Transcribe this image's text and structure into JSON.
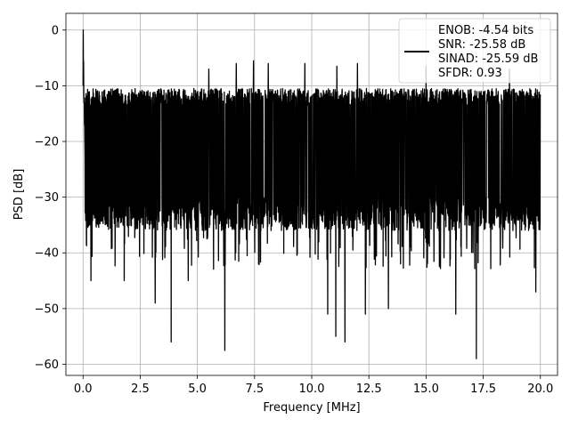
{
  "chart_data": {
    "type": "line",
    "xlabel": "Frequency [MHz]",
    "ylabel": "PSD [dB]",
    "xlim": [
      -0.75,
      20.75
    ],
    "ylim": [
      -62,
      3
    ],
    "x_ticks": [
      0.0,
      2.5,
      5.0,
      7.5,
      10.0,
      12.5,
      15.0,
      17.5,
      20.0
    ],
    "x_tick_labels": [
      "0.0",
      "2.5",
      "5.0",
      "7.5",
      "10.0",
      "12.5",
      "15.0",
      "17.5",
      "20.0"
    ],
    "y_ticks": [
      0,
      -10,
      -20,
      -30,
      -40,
      -50,
      -60
    ],
    "y_tick_labels": [
      "0",
      "−10",
      "−20",
      "−30",
      "−40",
      "−50",
      "−60"
    ],
    "grid": true,
    "legend_position": "top-right",
    "line_color": "#000000",
    "series": [
      {
        "name": "ENOB: -4.54 bits\nSNR: -25.58 dB\nSINAD: -25.59 dB\nSFDR: 0.93",
        "legend_lines": [
          "ENOB: -4.54 bits",
          "SNR: -25.58 dB",
          "SINAD: -25.59 dB",
          "SFDR: 0.93"
        ],
        "x_range": [
          0,
          20
        ],
        "peak": {
          "x": 0.0,
          "y": 0
        },
        "typical_band": {
          "upper_envelope": -12,
          "lower_envelope": -33
        },
        "deep_nulls": [
          {
            "x": 0.35,
            "y": -45
          },
          {
            "x": 1.8,
            "y": -45
          },
          {
            "x": 3.15,
            "y": -49
          },
          {
            "x": 3.85,
            "y": -56
          },
          {
            "x": 4.6,
            "y": -45
          },
          {
            "x": 6.2,
            "y": -57.5
          },
          {
            "x": 10.7,
            "y": -51
          },
          {
            "x": 11.05,
            "y": -55
          },
          {
            "x": 11.45,
            "y": -56
          },
          {
            "x": 12.35,
            "y": -51
          },
          {
            "x": 13.35,
            "y": -50
          },
          {
            "x": 16.3,
            "y": -51
          },
          {
            "x": 17.2,
            "y": -59
          },
          {
            "x": 19.8,
            "y": -47
          }
        ],
        "high_peaks": [
          {
            "x": 5.5,
            "y": -7
          },
          {
            "x": 6.7,
            "y": -6
          },
          {
            "x": 7.45,
            "y": -5.5
          },
          {
            "x": 8.1,
            "y": -6
          },
          {
            "x": 9.7,
            "y": -6
          },
          {
            "x": 11.1,
            "y": -6.5
          },
          {
            "x": 12.0,
            "y": -6
          },
          {
            "x": 15.0,
            "y": -6.5
          },
          {
            "x": 18.65,
            "y": -7
          }
        ]
      }
    ]
  }
}
